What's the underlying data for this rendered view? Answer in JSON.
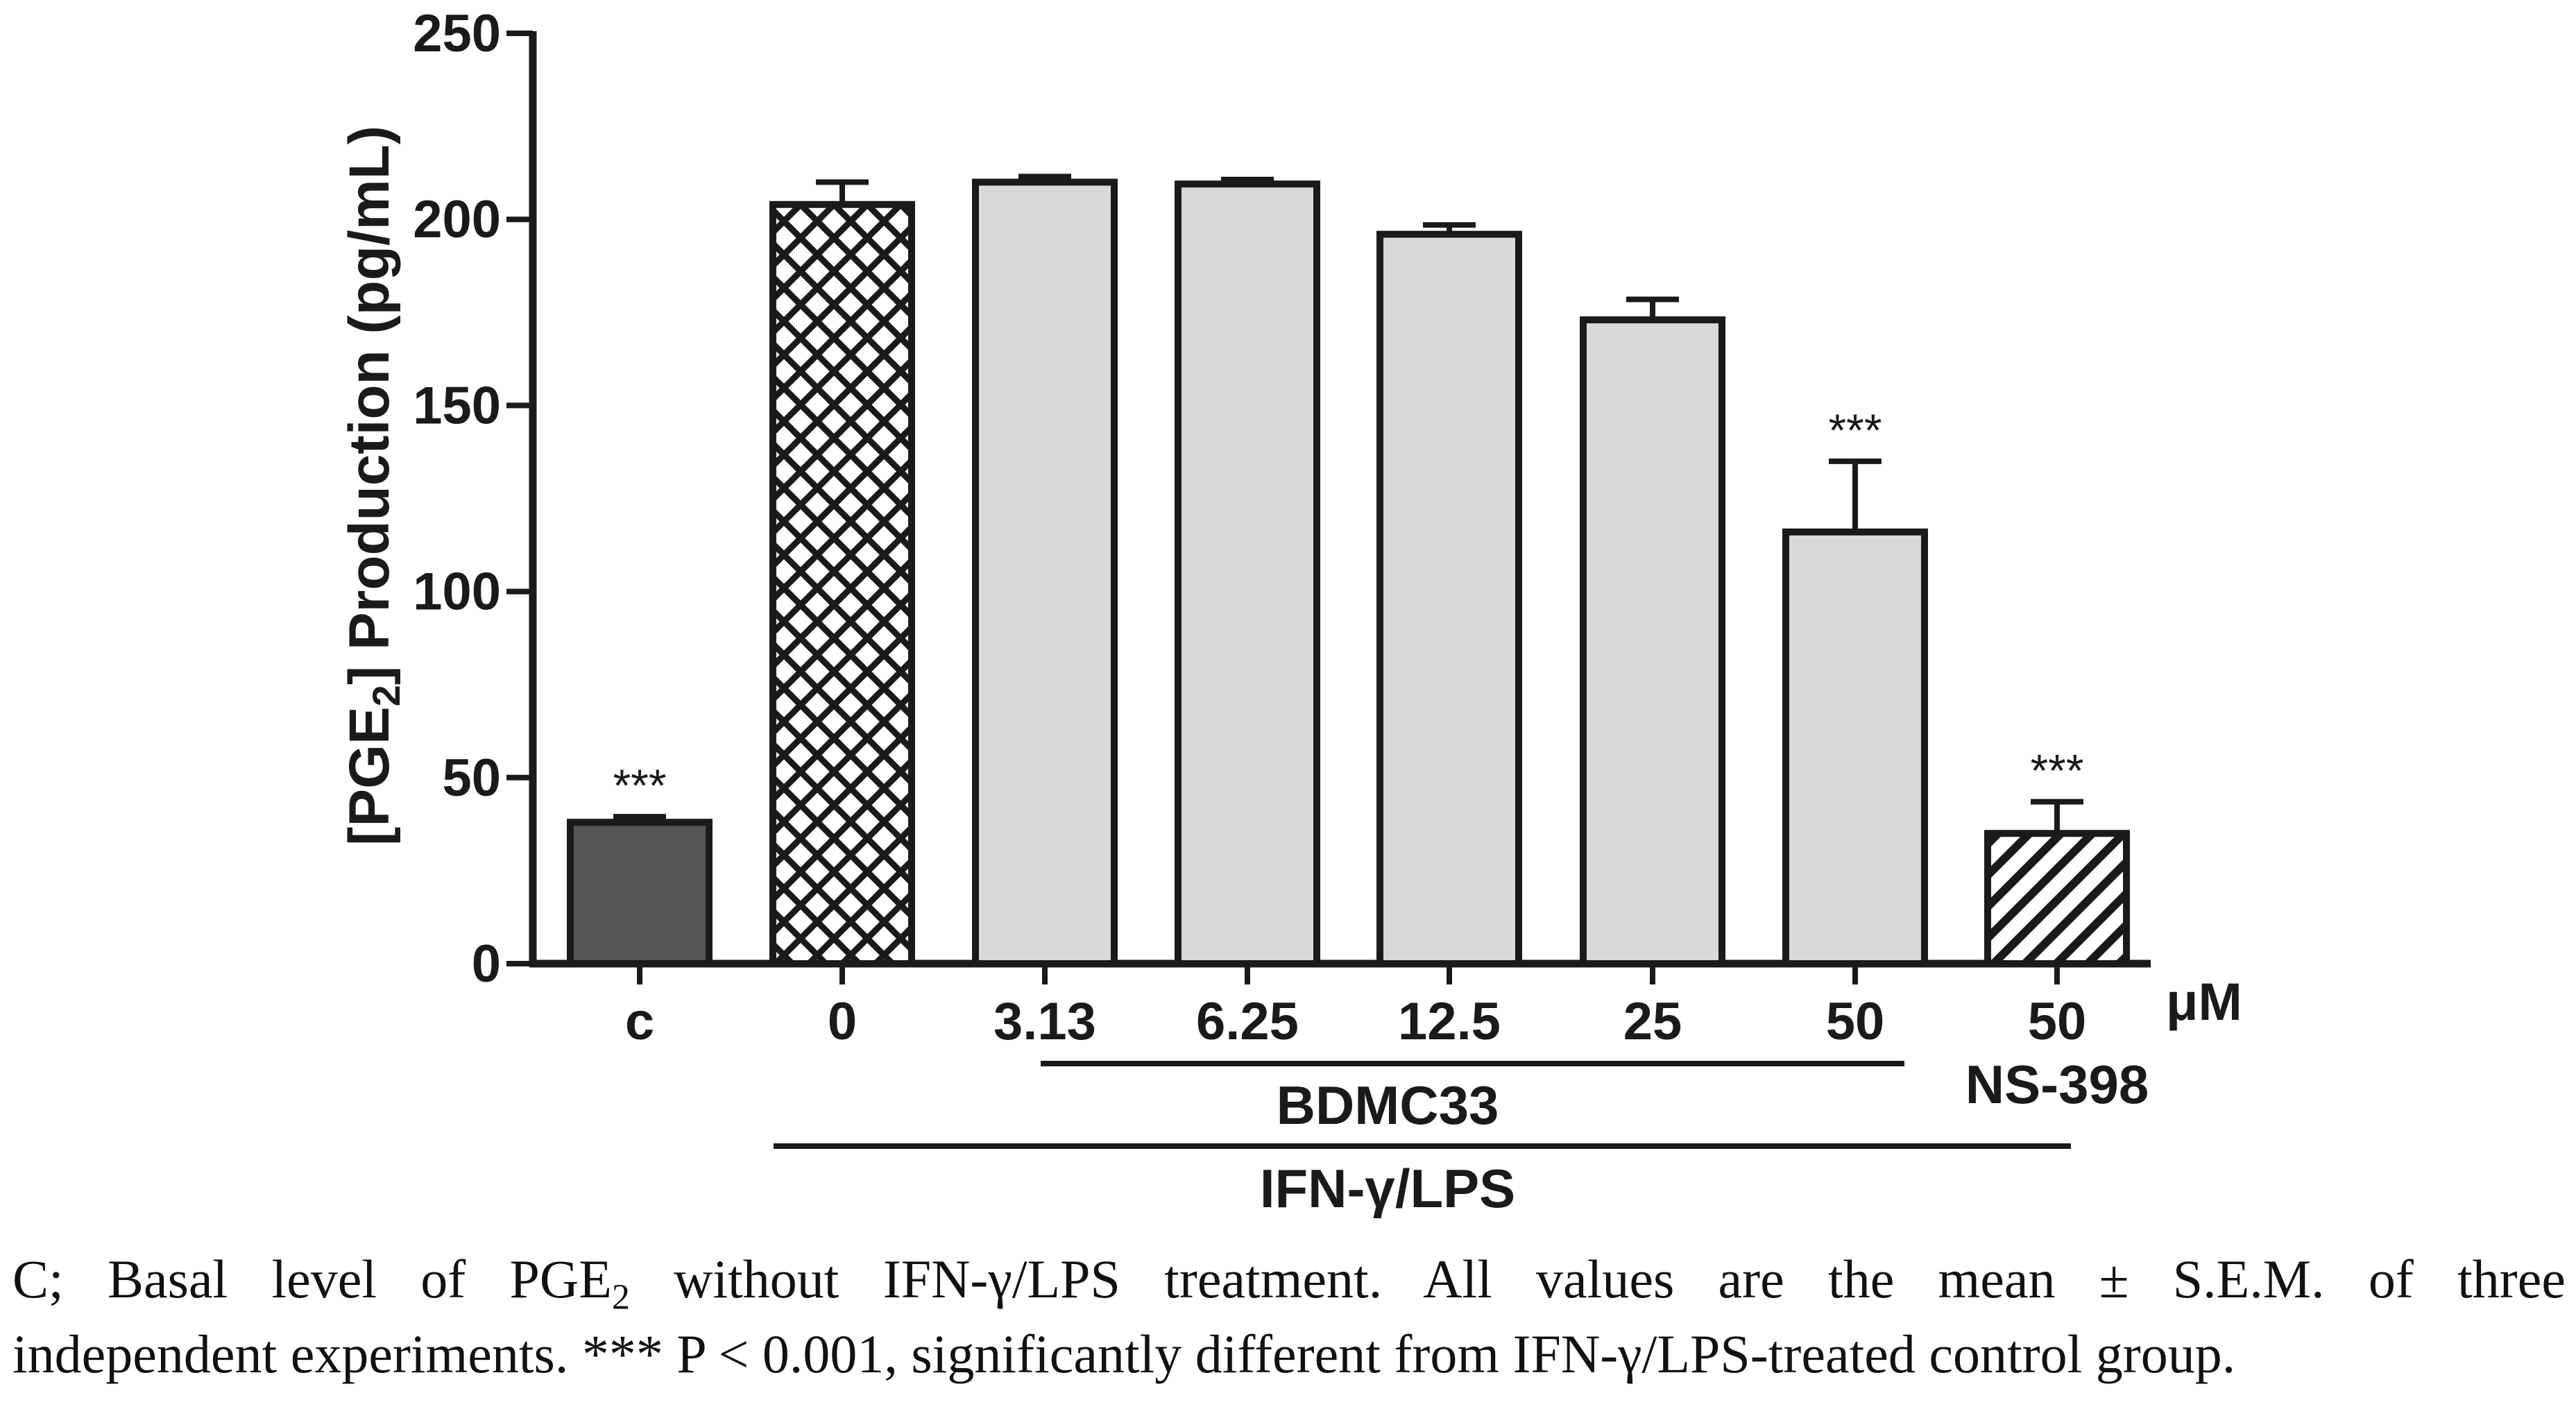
{
  "chart_data": {
    "type": "bar",
    "title": "",
    "ylabel": "[PGE2] Production (pg/mL)",
    "ylabel_main": "[PGE",
    "ylabel_sub": "2",
    "ylabel_rest": "] Production (pg/mL)",
    "xlabel": "",
    "ylim": [
      0,
      250
    ],
    "yticks": [
      0,
      50,
      100,
      150,
      200,
      250
    ],
    "unit_label": "μM",
    "categories": [
      "c",
      "0",
      "3.13",
      "6.25",
      "12.5",
      "25",
      "50",
      "50"
    ],
    "values": [
      38,
      204,
      210,
      209.5,
      196,
      173,
      116,
      35
    ],
    "errors": [
      1.5,
      6,
      1.5,
      1.2,
      2.5,
      5.5,
      19,
      8.5
    ],
    "significance": [
      "***",
      "",
      "",
      "",
      "",
      "",
      "***",
      "***"
    ],
    "fills": [
      "solid-dark",
      "crosshatch",
      "light",
      "light",
      "light",
      "light",
      "light",
      "diagonal"
    ],
    "group_labels": {
      "bdmc": "BDMC33",
      "ns": "NS-398",
      "ifn": "IFN-γ/LPS"
    },
    "colors": {
      "dark_bar": "#555555",
      "light_bar": "#d9d9d9",
      "stroke": "#1a1a1a"
    }
  },
  "caption": {
    "line1_a": "C; Basal level of PGE",
    "line1_sub": "2",
    "line1_b": " without IFN-γ/LPS treatment. All values are the mean ± S.E.M. of three",
    "line2": "independent experiments. *** P < 0.001, significantly different from IFN-γ/LPS-treated control group."
  }
}
